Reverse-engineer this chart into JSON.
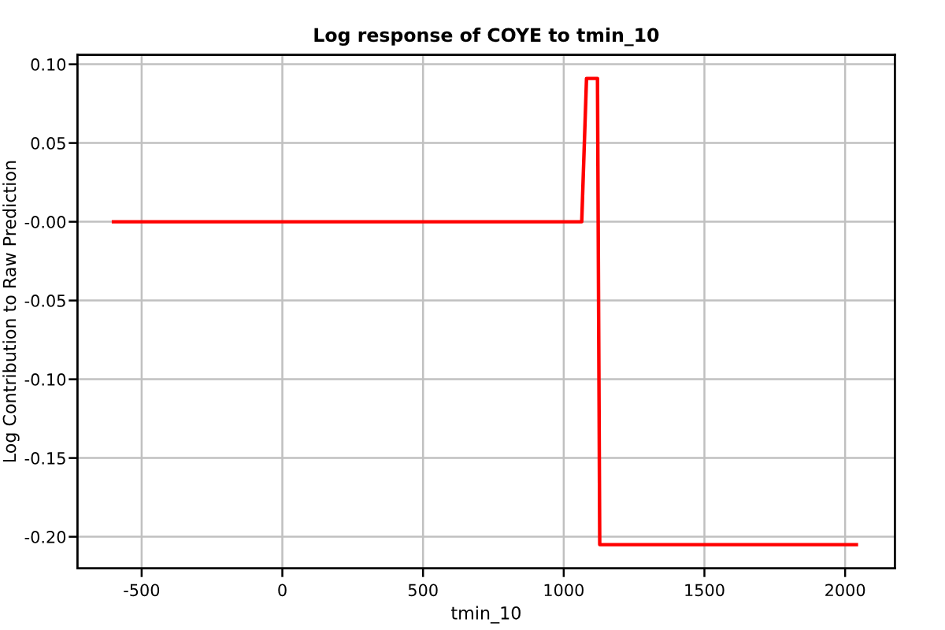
{
  "chart_data": {
    "type": "line",
    "title": "Log response of COYE to tmin_10",
    "xlabel": "tmin_10",
    "ylabel": "Log Contribution to Raw Prediction",
    "series": [
      {
        "color": "#ff0000",
        "x": [
          -600,
          1064,
          1081,
          1120,
          1128,
          2040
        ],
        "values": [
          0,
          0,
          0.091,
          0.091,
          -0.205,
          -0.205
        ]
      }
    ],
    "xlim": [
      -728,
      2177
    ],
    "xticks": [
      -500,
      0,
      500,
      1000,
      1500,
      2000
    ],
    "ylim": [
      -0.22,
      0.106
    ],
    "yticks": [
      {
        "value": 0.1,
        "label": "0.10"
      },
      {
        "value": 0.05,
        "label": "0.05"
      },
      {
        "value": 0,
        "label": "-0.00"
      },
      {
        "value": -0.05,
        "label": "-0.05"
      },
      {
        "value": -0.1,
        "label": "-0.10"
      },
      {
        "value": -0.15,
        "label": "-0.15"
      },
      {
        "value": -0.2,
        "label": "-0.20"
      }
    ],
    "grid": true,
    "line_style": "solid"
  }
}
